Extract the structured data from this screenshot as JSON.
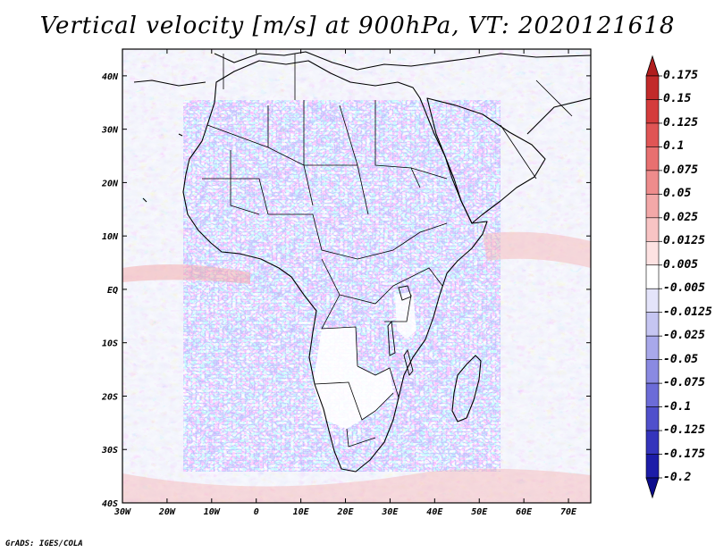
{
  "title": "Vertical velocity [m/s] at 900hPa, VT: 2020121618",
  "footer": "GrADS: IGES/COLA",
  "map": {
    "lon_labels": [
      "30W",
      "20W",
      "10W",
      "0",
      "10E",
      "20E",
      "30E",
      "40E",
      "50E",
      "60E",
      "70E"
    ],
    "lat_labels": [
      "40N",
      "30N",
      "20N",
      "10N",
      "EQ",
      "10S",
      "20S",
      "30S",
      "40S"
    ],
    "lon_range": [
      -30,
      75
    ],
    "lat_range": [
      -40,
      45
    ],
    "field_name": "vertical velocity",
    "units": "m/s",
    "level": "900hPa"
  },
  "colorbar": {
    "labels": [
      "0.175",
      "0.15",
      "0.125",
      "0.1",
      "0.075",
      "0.05",
      "0.025",
      "0.0125",
      "0.005",
      "-0.005",
      "-0.0125",
      "-0.025",
      "-0.05",
      "-0.075",
      "-0.1",
      "-0.125",
      "-0.175",
      "-0.2"
    ],
    "colors": [
      "#b01e1e",
      "#c22a2a",
      "#d43c3c",
      "#e05555",
      "#e87070",
      "#ee8c8c",
      "#f3a8a8",
      "#f8c4c4",
      "#fde2e2",
      "#ffffff",
      "#e4e4fa",
      "#c6c6f2",
      "#a8a8ea",
      "#8a8ae2",
      "#6c6cd8",
      "#5050cc",
      "#3434bc",
      "#1c1ca8",
      "#0c0c8c"
    ]
  },
  "icons": {
    "colorbar_top": "arrow-up-triangle-icon",
    "colorbar_bottom": "arrow-down-triangle-icon"
  }
}
